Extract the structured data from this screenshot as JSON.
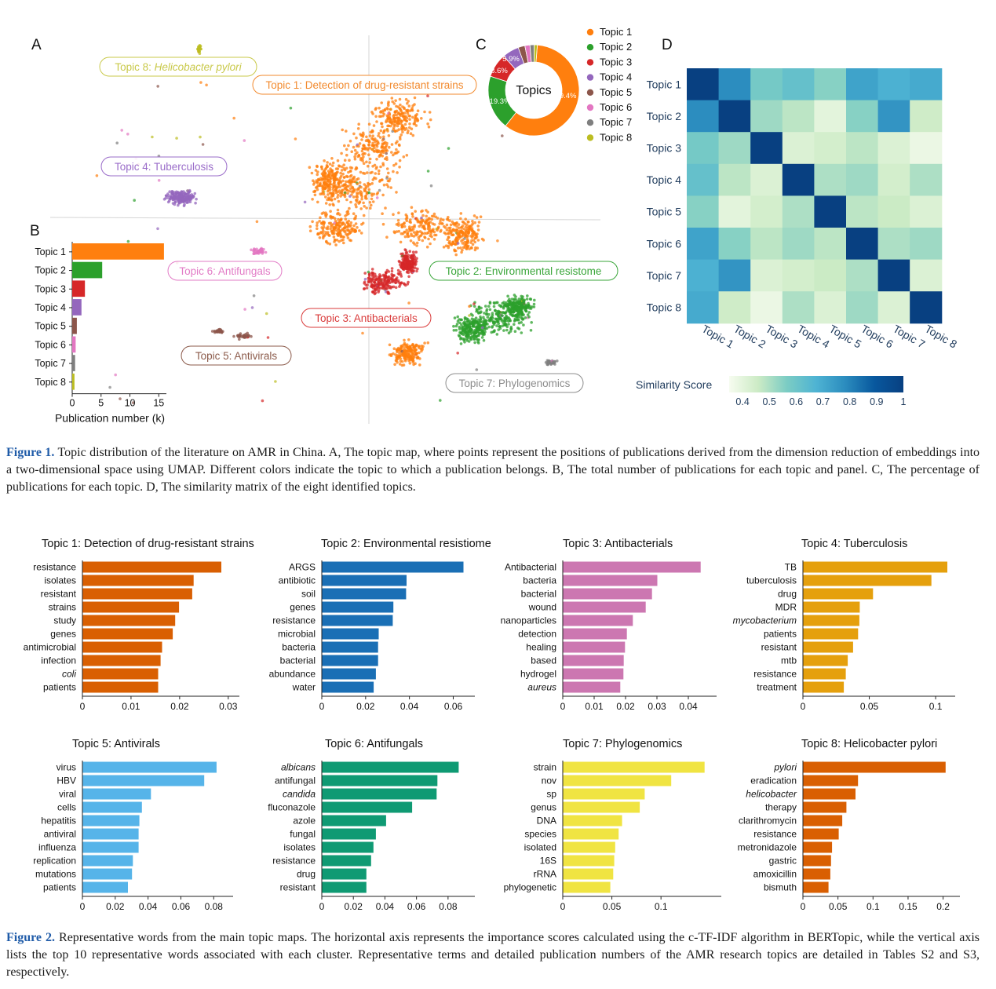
{
  "figure1": {
    "panel_letters": [
      "A",
      "B",
      "C",
      "D"
    ],
    "umap_labels": [
      {
        "text_plain": "Topic 8: ",
        "text_italic": "Helicobacter pylori",
        "color": "#c9c94a"
      },
      {
        "text_plain": "Topic 1: Detection of drug-resistant strains",
        "color": "#f28a2e"
      },
      {
        "text_plain": "Topic 4: Tuberculosis",
        "color": "#9a6cc9"
      },
      {
        "text_plain": "Topic 6: Antifungals",
        "color": "#e27bc6"
      },
      {
        "text_plain": "Topic 2: Environmental resistome",
        "color": "#3aa63a"
      },
      {
        "text_plain": "Topic 3: Antibacterials",
        "color": "#d93a3a"
      },
      {
        "text_plain": "Topic 5: Antivirals",
        "color": "#8b5a4a"
      },
      {
        "text_plain": "Topic 7: Phylogenomics",
        "color": "#8c8c8c"
      }
    ],
    "topic_colors": [
      "#ff7f0e",
      "#2ca02c",
      "#d62728",
      "#9467bd",
      "#8c564b",
      "#e377c2",
      "#7f7f7f",
      "#bcbd22"
    ],
    "topics": [
      "Topic 1",
      "Topic 2",
      "Topic 3",
      "Topic 4",
      "Topic 5",
      "Topic 6",
      "Topic 7",
      "Topic 8"
    ],
    "panel_b": {
      "type": "bar",
      "orientation": "horizontal",
      "categories": [
        "Topic 1",
        "Topic 2",
        "Topic 3",
        "Topic 4",
        "Topic 5",
        "Topic 6",
        "Topic 7",
        "Topic 8"
      ],
      "values": [
        15.9,
        5.2,
        2.2,
        1.6,
        0.8,
        0.6,
        0.5,
        0.4
      ],
      "xlabel": "Publication number (k)",
      "xticks": [
        "0",
        "5",
        "10",
        "15"
      ],
      "xlim": [
        0,
        17
      ]
    },
    "panel_c": {
      "type": "pie",
      "center_label": "Topics",
      "values": [
        59.4,
        19.3,
        8.6,
        5.9,
        2.4,
        1.8,
        1.5,
        1.1
      ],
      "shown_labels": [
        "59.4%",
        "19.3%",
        "8.6%",
        "5.9%"
      ]
    },
    "panel_d": {
      "type": "heatmap",
      "rows": [
        "Topic 1",
        "Topic 2",
        "Topic 3",
        "Topic 4",
        "Topic 5",
        "Topic 6",
        "Topic 7",
        "Topic 8"
      ],
      "cols": [
        "Topic 1",
        "Topic 2",
        "Topic 3",
        "Topic 4",
        "Topic 5",
        "Topic 6",
        "Topic 7",
        "Topic 8"
      ],
      "matrix": [
        [
          1.0,
          0.78,
          0.58,
          0.62,
          0.55,
          0.72,
          0.68,
          0.7
        ],
        [
          0.78,
          1.0,
          0.52,
          0.48,
          0.4,
          0.55,
          0.76,
          0.45
        ],
        [
          0.58,
          0.52,
          1.0,
          0.42,
          0.44,
          0.48,
          0.42,
          0.38
        ],
        [
          0.62,
          0.48,
          0.42,
          1.0,
          0.5,
          0.52,
          0.44,
          0.5
        ],
        [
          0.55,
          0.4,
          0.44,
          0.5,
          1.0,
          0.48,
          0.46,
          0.42
        ],
        [
          0.72,
          0.55,
          0.48,
          0.52,
          0.48,
          1.0,
          0.5,
          0.52
        ],
        [
          0.68,
          0.76,
          0.42,
          0.44,
          0.46,
          0.5,
          1.0,
          0.42
        ],
        [
          0.7,
          0.45,
          0.38,
          0.5,
          0.42,
          0.52,
          0.42,
          1.0
        ]
      ],
      "colorbar_label": "Similarity Score",
      "colorbar_ticks": [
        "0.4",
        "0.5",
        "0.6",
        "0.7",
        "0.8",
        "0.9",
        "1"
      ],
      "vmin": 0.35,
      "vmax": 1.0
    }
  },
  "caption1": {
    "label": "Figure 1.",
    "text": "Topic distribution of the literature on AMR in China. A, The topic map, where points represent the positions of publications derived from the dimension reduction of embeddings into a two-dimensional space using UMAP. Different colors indicate the topic to which a publication belongs. B, The total number of publications for each topic and panel. C, The percentage of publications for each topic. D, The similarity matrix of the eight identified topics."
  },
  "chart_data": [
    {
      "type": "bar",
      "title": "Topic 1: Detection of drug-resistant strains",
      "color": "#d95f02",
      "categories": [
        "resistance",
        "isolates",
        "resistant",
        "strains",
        "study",
        "genes",
        "antimicrobial",
        "infection",
        "coli",
        "patients"
      ],
      "italic": [
        "coli"
      ],
      "values": [
        0.0285,
        0.0228,
        0.0225,
        0.0198,
        0.019,
        0.0185,
        0.0163,
        0.016,
        0.0155,
        0.0155
      ],
      "xlim": [
        0,
        0.031
      ],
      "xticks": [
        0,
        0.01,
        0.02,
        0.03
      ],
      "xtick_labels": [
        "0",
        "0.01",
        "0.02",
        "0.03"
      ]
    },
    {
      "type": "bar",
      "title": "Topic 2: Environmental resistiome",
      "color": "#1a6fb5",
      "categories": [
        "ARGS",
        "antibiotic",
        "soil",
        "genes",
        "resistance",
        "microbial",
        "bacteria",
        "bacterial",
        "abundance",
        "water"
      ],
      "italic": [],
      "values": [
        0.0645,
        0.0385,
        0.0383,
        0.0325,
        0.0322,
        0.0258,
        0.0255,
        0.0255,
        0.0245,
        0.0235
      ],
      "xlim": [
        0,
        0.067
      ],
      "xticks": [
        0,
        0.02,
        0.04,
        0.06
      ],
      "xtick_labels": [
        "0",
        "0.02",
        "0.04",
        "0.06"
      ]
    },
    {
      "type": "bar",
      "title": "Topic 3: Antibacterials",
      "color": "#cc77b1",
      "categories": [
        "Antibacterial",
        "bacteria",
        "bacterial",
        "wound",
        "nanoparticles",
        "detection",
        "healing",
        "based",
        "hydrogel",
        "aureus"
      ],
      "italic": [
        "aureus"
      ],
      "values": [
        0.0438,
        0.03,
        0.0283,
        0.0263,
        0.0222,
        0.0203,
        0.0197,
        0.0193,
        0.0192,
        0.0182
      ],
      "xlim": [
        0,
        0.047
      ],
      "xticks": [
        0,
        0.01,
        0.02,
        0.03,
        0.04
      ],
      "xtick_labels": [
        "0",
        "0.01",
        "0.02",
        "0.03",
        "0.04"
      ]
    },
    {
      "type": "bar",
      "title": "Topic 4: Tuberculosis",
      "color": "#e5a00d",
      "categories": [
        "TB",
        "tuberculosis",
        "drug",
        "MDR",
        "mycobacterium",
        "patients",
        "resistant",
        "mtb",
        "resistance",
        "treatment"
      ],
      "italic": [
        "mycobacterium"
      ],
      "values": [
        0.1085,
        0.0965,
        0.0525,
        0.0425,
        0.0422,
        0.0413,
        0.0375,
        0.0335,
        0.032,
        0.0305
      ],
      "xlim": [
        0,
        0.11
      ],
      "xticks": [
        0,
        0.05,
        0.1
      ],
      "xtick_labels": [
        "0",
        "0.05",
        "0.1"
      ]
    },
    {
      "type": "bar",
      "title": "Topic 5: Antivirals",
      "color": "#56b4e9",
      "categories": [
        "virus",
        "HBV",
        "viral",
        "cells",
        "hepatitis",
        "antiviral",
        "influenza",
        "replication",
        "mutations",
        "patients"
      ],
      "italic": [],
      "values": [
        0.0815,
        0.074,
        0.0415,
        0.036,
        0.0345,
        0.034,
        0.034,
        0.0305,
        0.03,
        0.0275
      ],
      "xlim": [
        0,
        0.088
      ],
      "xticks": [
        0,
        0.02,
        0.04,
        0.06,
        0.08
      ],
      "xtick_labels": [
        "0",
        "0.02",
        "0.04",
        "0.06",
        "0.08"
      ]
    },
    {
      "type": "bar",
      "title": "Topic 6: Antifungals",
      "color": "#0f9a73",
      "categories": [
        "albicans",
        "antifungal",
        "candida",
        "fluconazole",
        "azole",
        "fungal",
        "isolates",
        "resistance",
        "drug",
        "resistant"
      ],
      "italic": [
        "albicans",
        "candida"
      ],
      "values": [
        0.0865,
        0.073,
        0.0725,
        0.057,
        0.0405,
        0.034,
        0.0325,
        0.031,
        0.028,
        0.028
      ],
      "xlim": [
        0,
        0.093
      ],
      "xticks": [
        0,
        0.02,
        0.04,
        0.06,
        0.08
      ],
      "xtick_labels": [
        "0",
        "0.02",
        "0.04",
        "0.06",
        "0.08"
      ]
    },
    {
      "type": "bar",
      "title": "Topic 7: Phylogenomics",
      "color": "#f0e442",
      "categories": [
        "strain",
        "nov",
        "sp",
        "genus",
        "DNA",
        "species",
        "isolated",
        "16S",
        "rRNA",
        "phylogenetic"
      ],
      "italic": [],
      "values": [
        0.144,
        0.11,
        0.083,
        0.078,
        0.06,
        0.0565,
        0.053,
        0.052,
        0.051,
        0.048
      ],
      "xlim": [
        0,
        0.155
      ],
      "xticks": [
        0,
        0.05,
        0.1
      ],
      "xtick_labels": [
        "0",
        "0.05",
        "0.1"
      ]
    },
    {
      "type": "bar",
      "title": "Topic 8: Helicobacter pylori",
      "color": "#d95f02",
      "categories": [
        "pylori",
        "eradication",
        "helicobacter",
        "therapy",
        "clarithromycin",
        "resistance",
        "metronidazole",
        "gastric",
        "amoxicillin",
        "bismuth"
      ],
      "italic": [
        "pylori",
        "helicobacter"
      ],
      "values": [
        0.203,
        0.078,
        0.0745,
        0.0615,
        0.0555,
        0.0505,
        0.041,
        0.0395,
        0.0385,
        0.036
      ],
      "xlim": [
        0,
        0.215
      ],
      "xticks": [
        0,
        0.05,
        0.1,
        0.15,
        0.2
      ],
      "xtick_labels": [
        "0",
        "0.05",
        "0.1",
        "0.15",
        "0.2"
      ]
    }
  ],
  "caption2": {
    "label": "Figure 2.",
    "text": "Representative words from the main topic maps. The horizontal axis represents the importance scores calculated using the c-TF-IDF algorithm in BERTopic, while the vertical axis lists the top 10 representative words associated with each cluster. Representative terms and detailed publication numbers of the AMR research topics are detailed in Tables S2 and S3, respectively."
  }
}
